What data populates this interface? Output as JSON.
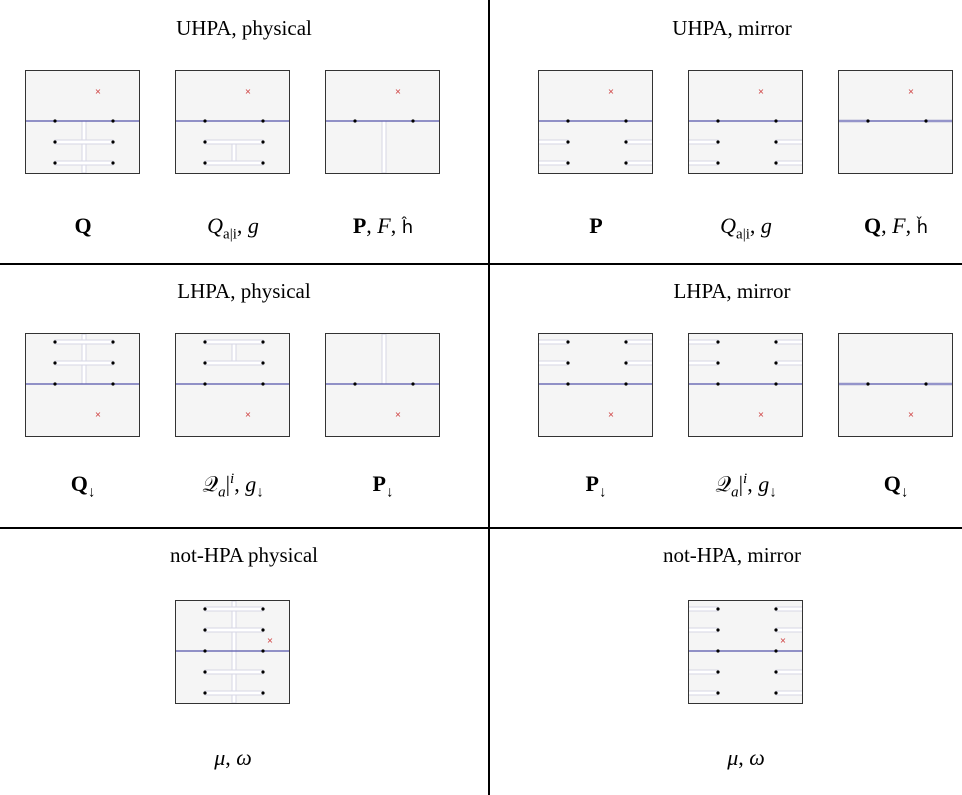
{
  "cells": [
    {
      "id": "uhpa-physical",
      "title": "UHPA, physical",
      "panels": [
        {
          "name": "uhpa-physical-Q",
          "label": [
            {
              "t": "Q",
              "c": "b"
            }
          ],
          "cross": "top",
          "cuts": "physical",
          "pairs": 2,
          "side": "below",
          "vertical": "full"
        },
        {
          "name": "uhpa-physical-Qai",
          "label": [
            {
              "t": "Q",
              "c": "i"
            },
            {
              "t": "a|i",
              "c": "sub"
            },
            {
              "t": ", ",
              "c": ""
            },
            {
              "t": "g",
              "c": "i"
            }
          ],
          "cross": "top",
          "cuts": "physical",
          "pairs": 2,
          "side": "below",
          "vertical": "short"
        },
        {
          "name": "uhpa-physical-P",
          "label": [
            {
              "t": "P",
              "c": "b"
            },
            {
              "t": ", ",
              "c": ""
            },
            {
              "t": "F",
              "c": "i"
            },
            {
              "t": ", ",
              "c": ""
            },
            {
              "t": "ĥ",
              "c": "sf"
            }
          ],
          "cross": "top",
          "cuts": "physical",
          "pairs": 1,
          "side": "below",
          "vertical": "full"
        }
      ]
    },
    {
      "id": "uhpa-mirror",
      "title": "UHPA, mirror",
      "panels": [
        {
          "name": "uhpa-mirror-P",
          "label": [
            {
              "t": "P",
              "c": "b"
            }
          ],
          "cross": "top",
          "cuts": "mirror",
          "pairs": 3,
          "side": "below"
        },
        {
          "name": "uhpa-mirror-Qai",
          "label": [
            {
              "t": "Q",
              "c": "i"
            },
            {
              "t": "a|i",
              "c": "sub"
            },
            {
              "t": ", ",
              "c": ""
            },
            {
              "t": "g",
              "c": "i"
            }
          ],
          "cross": "top",
          "cuts": "mirror",
          "pairs": 2,
          "side": "below"
        },
        {
          "name": "uhpa-mirror-Q",
          "label": [
            {
              "t": "Q",
              "c": "b"
            },
            {
              "t": ", ",
              "c": ""
            },
            {
              "t": "F",
              "c": "i"
            },
            {
              "t": ", ",
              "c": ""
            },
            {
              "t": "ȟ",
              "c": "sf"
            }
          ],
          "cross": "top",
          "cuts": "mirror",
          "pairs": 1,
          "side": "below"
        }
      ]
    },
    {
      "id": "lhpa-physical",
      "title": "LHPA, physical",
      "panels": [
        {
          "name": "lhpa-physical-Qdown",
          "label": [
            {
              "t": "Q",
              "c": "b"
            },
            {
              "t": "↓",
              "c": "sub"
            }
          ],
          "cross": "bottom",
          "cuts": "physical",
          "pairs": 2,
          "side": "above",
          "vertical": "full"
        },
        {
          "name": "lhpa-physical-Qai",
          "label": [
            {
              "t": "𝒬",
              "c": ""
            },
            {
              "t": "a",
              "c": "subi"
            },
            {
              "t": "|",
              "c": ""
            },
            {
              "t": "i",
              "c": "supi"
            },
            {
              "t": ", ",
              "c": ""
            },
            {
              "t": "g",
              "c": "i"
            },
            {
              "t": "↓",
              "c": "sub"
            }
          ],
          "cross": "bottom",
          "cuts": "physical",
          "pairs": 2,
          "side": "above",
          "vertical": "short"
        },
        {
          "name": "lhpa-physical-Pdown",
          "label": [
            {
              "t": "P",
              "c": "b"
            },
            {
              "t": "↓",
              "c": "sub"
            }
          ],
          "cross": "bottom",
          "cuts": "physical",
          "pairs": 1,
          "side": "above",
          "vertical": "full"
        }
      ]
    },
    {
      "id": "lhpa-mirror",
      "title": "LHPA, mirror",
      "panels": [
        {
          "name": "lhpa-mirror-Pdown",
          "label": [
            {
              "t": "P",
              "c": "b"
            },
            {
              "t": "↓",
              "c": "sub"
            }
          ],
          "cross": "bottom",
          "cuts": "mirror",
          "pairs": 3,
          "side": "above"
        },
        {
          "name": "lhpa-mirror-Qai",
          "label": [
            {
              "t": "𝒬",
              "c": ""
            },
            {
              "t": "a",
              "c": "subi"
            },
            {
              "t": "|",
              "c": ""
            },
            {
              "t": "i",
              "c": "supi"
            },
            {
              "t": ", ",
              "c": ""
            },
            {
              "t": "g",
              "c": "i"
            },
            {
              "t": "↓",
              "c": "sub"
            }
          ],
          "cross": "bottom",
          "cuts": "mirror",
          "pairs": 2,
          "side": "above"
        },
        {
          "name": "lhpa-mirror-Qdown",
          "label": [
            {
              "t": "Q",
              "c": "b"
            },
            {
              "t": "↓",
              "c": "sub"
            }
          ],
          "cross": "bottom",
          "cuts": "mirror",
          "pairs": 1,
          "side": "above"
        }
      ]
    },
    {
      "id": "nothpa-physical",
      "title": "not-HPA physical",
      "panels": [
        {
          "name": "nothpa-physical-mu",
          "label": [
            {
              "t": "μ",
              "c": "i"
            },
            {
              "t": ", ",
              "c": ""
            },
            {
              "t": "ω",
              "c": "i"
            }
          ],
          "cross": "right",
          "cuts": "physical",
          "pairs": 2,
          "side": "both",
          "vertical": "full"
        }
      ]
    },
    {
      "id": "nothpa-mirror",
      "title": "not-HPA, mirror",
      "panels": [
        {
          "name": "nothpa-mirror-mu",
          "label": [
            {
              "t": "μ",
              "c": "i"
            },
            {
              "t": ", ",
              "c": ""
            },
            {
              "t": "ω",
              "c": "i"
            }
          ],
          "cross": "right",
          "cuts": "mirror",
          "pairs": 2,
          "side": "both"
        }
      ]
    }
  ],
  "colors": {
    "panel_bg": "#f5f5f5",
    "real_axis": "#5555aa",
    "cut": "#ffffff",
    "cut_edge": "#d6d6e4",
    "branch_point": "#000000",
    "cross": "#cc3333"
  }
}
